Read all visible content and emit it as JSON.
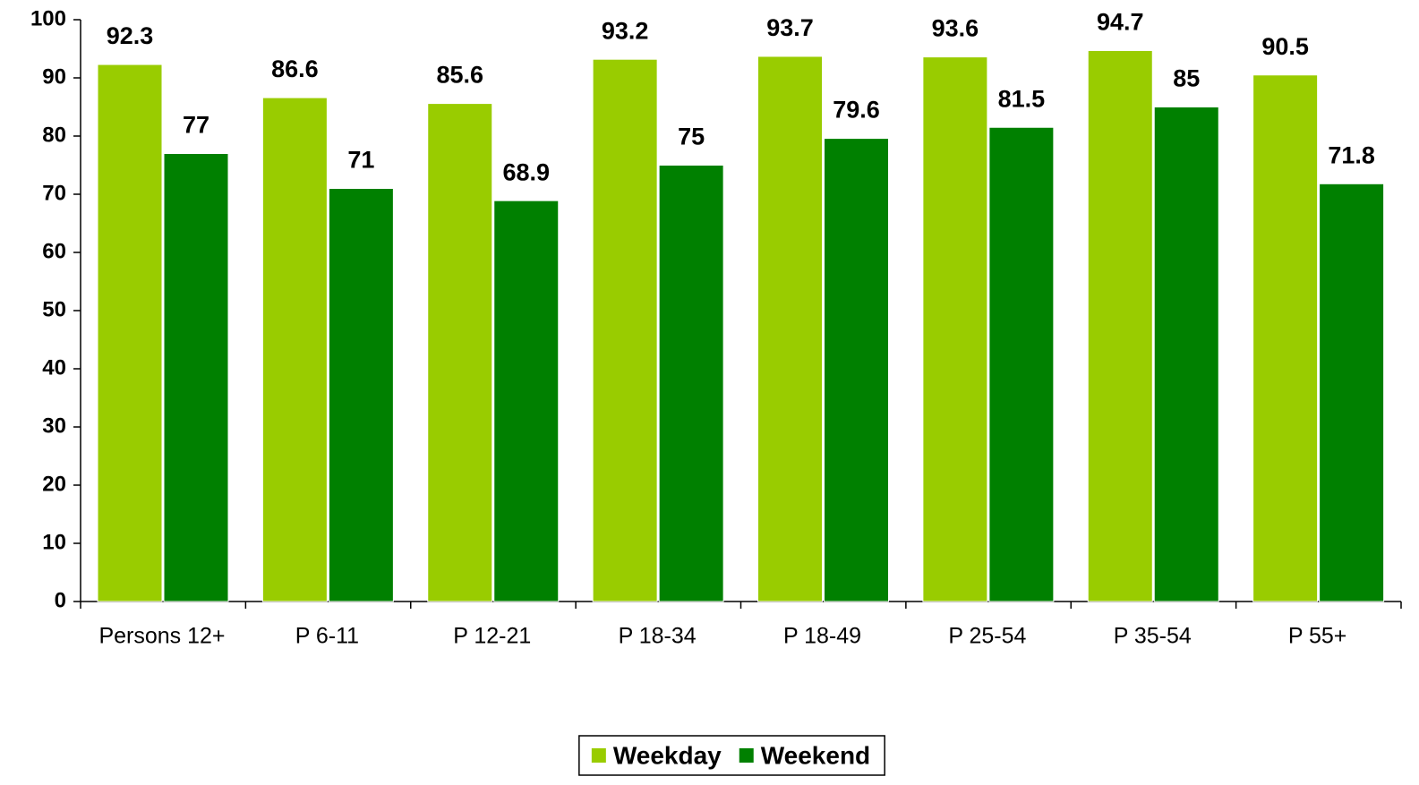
{
  "chart_data": {
    "type": "bar",
    "categories": [
      "Persons 12+",
      "P 6-11",
      "P 12-21",
      "P 18-34",
      "P 18-49",
      "P 25-54",
      "P 35-54",
      "P 55+"
    ],
    "series": [
      {
        "name": "Weekday",
        "color": "#99cc00",
        "values": [
          92.3,
          86.6,
          85.6,
          93.2,
          93.7,
          93.6,
          94.7,
          90.5
        ]
      },
      {
        "name": "Weekend",
        "color": "#008000",
        "values": [
          77,
          71,
          68.9,
          75,
          79.6,
          81.5,
          85,
          71.8
        ]
      }
    ],
    "ylim": [
      0,
      100
    ],
    "yticks": [
      0,
      10,
      20,
      30,
      40,
      50,
      60,
      70,
      80,
      90,
      100
    ],
    "legend": "bottom"
  }
}
